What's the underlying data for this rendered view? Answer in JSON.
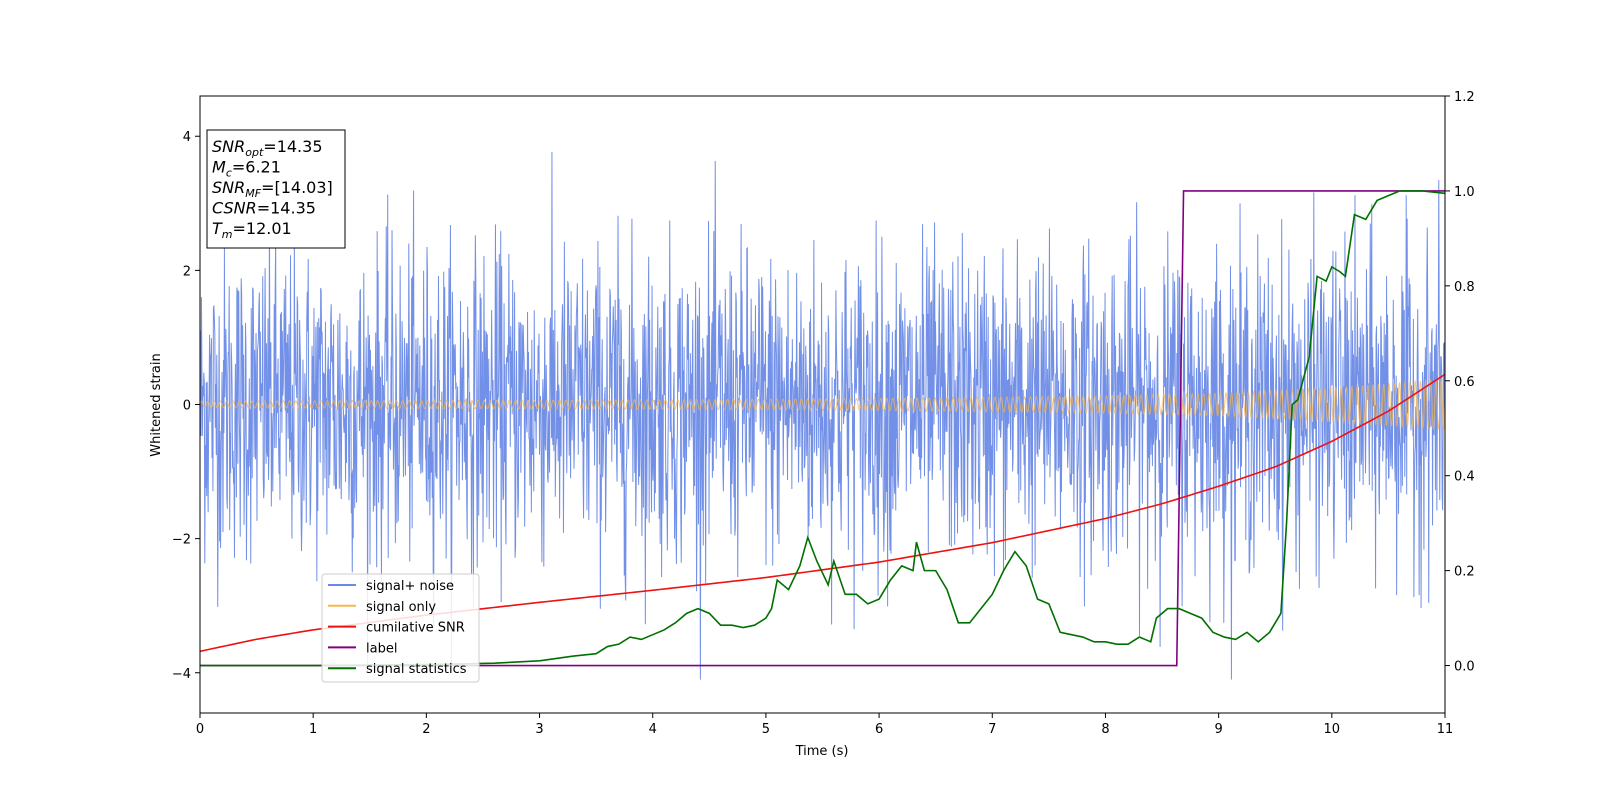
{
  "chart_data": {
    "type": "line",
    "xlabel": "Time (s)",
    "ylabel": "Whitened strain",
    "xlim": [
      0,
      11
    ],
    "ylim_left": [
      -4.6,
      4.6
    ],
    "ylim_right": [
      -0.1,
      1.2
    ],
    "x_ticks": [
      0,
      1,
      2,
      3,
      4,
      5,
      6,
      7,
      8,
      9,
      10,
      11
    ],
    "y_ticks_left": [
      -4,
      -2,
      0,
      2,
      4
    ],
    "y_ticks_right": [
      0.0,
      0.2,
      0.4,
      0.6,
      0.8,
      1.0,
      1.2
    ],
    "grid": false,
    "legend_position": "lower-left",
    "annotation_lines": [
      {
        "id": "snr-opt",
        "main": "SNR",
        "sub": "opt",
        "value": "=14.35"
      },
      {
        "id": "mc",
        "main": "M",
        "sub": "c",
        "value": "=6.21"
      },
      {
        "id": "snr-mf",
        "main": "SNR",
        "sub": "MF",
        "value": "=[14.03]"
      },
      {
        "id": "csnr",
        "main": "CSNR",
        "sub": "",
        "value": "=14.35"
      },
      {
        "id": "tm",
        "main": "T",
        "sub": "m",
        "value": "=12.01"
      }
    ],
    "series": [
      {
        "name": "signal+ noise",
        "color": "#6a8ae6",
        "axis": "left",
        "kind": "noise",
        "amplitude_range": [
          -4.1,
          4.1
        ]
      },
      {
        "name": "signal only",
        "color": "#f5b650",
        "axis": "left",
        "kind": "chirp",
        "envelope": {
          "x": [
            0,
            2,
            4,
            6,
            8,
            9,
            10,
            11
          ],
          "amplitude": [
            0.05,
            0.06,
            0.07,
            0.09,
            0.13,
            0.17,
            0.25,
            0.38
          ]
        }
      },
      {
        "name": "cumilative SNR",
        "color": "#ee1111",
        "axis": "left",
        "kind": "line",
        "x": [
          0,
          0.5,
          1,
          2,
          3,
          4,
          5,
          6,
          7,
          8,
          8.5,
          9,
          9.5,
          10,
          10.5,
          11
        ],
        "y": [
          -3.68,
          -3.5,
          -3.36,
          -3.14,
          -2.95,
          -2.77,
          -2.58,
          -2.35,
          -2.06,
          -1.7,
          -1.48,
          -1.22,
          -0.93,
          -0.55,
          -0.1,
          0.45
        ]
      },
      {
        "name": "label",
        "color": "#800080",
        "axis": "right",
        "kind": "line",
        "x": [
          0,
          8.63,
          8.69,
          11
        ],
        "y": [
          0,
          0,
          1,
          1
        ]
      },
      {
        "name": "signal statistics",
        "color": "#007000",
        "axis": "right",
        "kind": "line",
        "x": [
          0,
          1,
          2,
          2.6,
          3.0,
          3.3,
          3.5,
          3.6,
          3.7,
          3.8,
          3.9,
          4.0,
          4.1,
          4.2,
          4.3,
          4.4,
          4.5,
          4.6,
          4.7,
          4.8,
          4.9,
          5.0,
          5.05,
          5.1,
          5.2,
          5.3,
          5.37,
          5.45,
          5.55,
          5.6,
          5.7,
          5.8,
          5.9,
          6.0,
          6.1,
          6.2,
          6.3,
          6.33,
          6.4,
          6.5,
          6.6,
          6.7,
          6.8,
          6.9,
          7.0,
          7.1,
          7.2,
          7.3,
          7.4,
          7.5,
          7.6,
          7.7,
          7.8,
          7.9,
          8.0,
          8.1,
          8.2,
          8.3,
          8.4,
          8.45,
          8.55,
          8.65,
          8.75,
          8.85,
          8.95,
          9.05,
          9.15,
          9.25,
          9.35,
          9.45,
          9.55,
          9.6,
          9.65,
          9.7,
          9.8,
          9.87,
          9.95,
          10.0,
          10.07,
          10.12,
          10.2,
          10.3,
          10.4,
          10.5,
          10.6,
          10.8,
          11
        ],
        "y": [
          0.0,
          0.0,
          0.002,
          0.005,
          0.01,
          0.02,
          0.025,
          0.04,
          0.045,
          0.06,
          0.055,
          0.065,
          0.075,
          0.09,
          0.11,
          0.12,
          0.11,
          0.085,
          0.085,
          0.08,
          0.085,
          0.1,
          0.12,
          0.18,
          0.16,
          0.21,
          0.27,
          0.22,
          0.17,
          0.22,
          0.15,
          0.15,
          0.13,
          0.14,
          0.18,
          0.21,
          0.2,
          0.26,
          0.2,
          0.2,
          0.16,
          0.09,
          0.09,
          0.12,
          0.15,
          0.2,
          0.24,
          0.21,
          0.14,
          0.13,
          0.07,
          0.065,
          0.06,
          0.05,
          0.05,
          0.045,
          0.045,
          0.06,
          0.05,
          0.1,
          0.12,
          0.12,
          0.11,
          0.1,
          0.07,
          0.06,
          0.055,
          0.07,
          0.05,
          0.07,
          0.11,
          0.3,
          0.55,
          0.56,
          0.65,
          0.82,
          0.81,
          0.84,
          0.83,
          0.82,
          0.95,
          0.94,
          0.98,
          0.99,
          1.0,
          1.0,
          0.995
        ]
      }
    ]
  }
}
